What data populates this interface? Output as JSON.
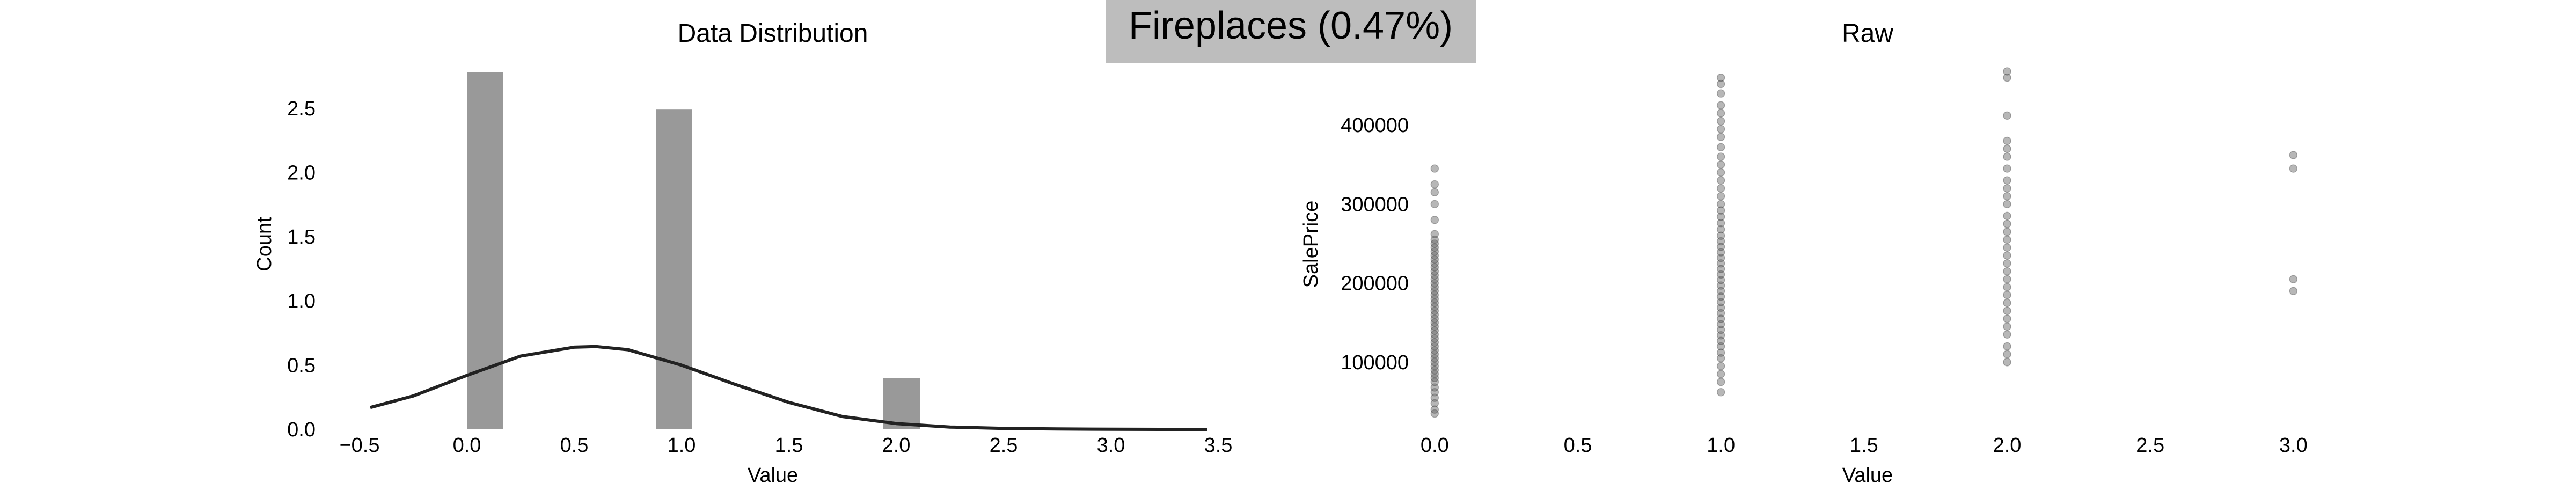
{
  "figure": {
    "title": "Fireplaces (0.47%)",
    "colors": {
      "bar": "#999999",
      "curve": "#222222",
      "point": "#5f5f5f",
      "title_box": "#bdbdbd"
    }
  },
  "chart_data": [
    {
      "type": "bar",
      "title": "Data Distribution",
      "xlabel": "Value",
      "ylabel": "Count",
      "xlim": [
        -0.6,
        3.45
      ],
      "ylim": [
        0,
        2.8
      ],
      "xticks": [
        "−0.5",
        "0.0",
        "0.5",
        "1.0",
        "1.5",
        "2.0",
        "2.5",
        "3.0",
        "3.5"
      ],
      "yticks": [
        "0.0",
        "0.5",
        "1.0",
        "1.5",
        "2.0",
        "2.5"
      ],
      "grid": false,
      "bars": [
        {
          "x0": 0.0,
          "x1": 0.17,
          "value": 2.78
        },
        {
          "x0": 0.88,
          "x1": 1.05,
          "value": 2.49
        },
        {
          "x0": 1.94,
          "x1": 2.11,
          "value": 0.4
        }
      ],
      "density_curve": {
        "x": [
          -0.45,
          -0.25,
          0.0,
          0.25,
          0.5,
          0.6,
          0.75,
          1.0,
          1.25,
          1.5,
          1.75,
          2.0,
          2.25,
          2.5,
          2.75,
          3.0,
          3.25,
          3.45
        ],
        "y": [
          0.17,
          0.26,
          0.42,
          0.57,
          0.64,
          0.645,
          0.62,
          0.5,
          0.35,
          0.21,
          0.1,
          0.045,
          0.018,
          0.007,
          0.003,
          0.001,
          0.0,
          0.0
        ]
      }
    },
    {
      "type": "scatter",
      "title": "Raw",
      "xlabel": "Value",
      "ylabel": "SalePrice",
      "xlim": [
        -0.1,
        3.05
      ],
      "ylim": [
        15000,
        470000
      ],
      "xticks": [
        "0.0",
        "0.5",
        "1.0",
        "1.5",
        "2.0",
        "2.5",
        "3.0"
      ],
      "yticks": [
        "100000",
        "200000",
        "300000",
        "400000"
      ],
      "grid": false,
      "points": [
        {
          "x": 0,
          "y": 35000
        },
        {
          "x": 0,
          "y": 40000
        },
        {
          "x": 0,
          "y": 48000
        },
        {
          "x": 0,
          "y": 55000
        },
        {
          "x": 0,
          "y": 62000
        },
        {
          "x": 0,
          "y": 68000
        },
        {
          "x": 0,
          "y": 75000
        },
        {
          "x": 0,
          "y": 80000
        },
        {
          "x": 0,
          "y": 85000
        },
        {
          "x": 0,
          "y": 90000
        },
        {
          "x": 0,
          "y": 95000
        },
        {
          "x": 0,
          "y": 100000
        },
        {
          "x": 0,
          "y": 105000
        },
        {
          "x": 0,
          "y": 110000
        },
        {
          "x": 0,
          "y": 115000
        },
        {
          "x": 0,
          "y": 120000
        },
        {
          "x": 0,
          "y": 125000
        },
        {
          "x": 0,
          "y": 130000
        },
        {
          "x": 0,
          "y": 135000
        },
        {
          "x": 0,
          "y": 140000
        },
        {
          "x": 0,
          "y": 145000
        },
        {
          "x": 0,
          "y": 150000
        },
        {
          "x": 0,
          "y": 155000
        },
        {
          "x": 0,
          "y": 160000
        },
        {
          "x": 0,
          "y": 165000
        },
        {
          "x": 0,
          "y": 170000
        },
        {
          "x": 0,
          "y": 175000
        },
        {
          "x": 0,
          "y": 180000
        },
        {
          "x": 0,
          "y": 185000
        },
        {
          "x": 0,
          "y": 190000
        },
        {
          "x": 0,
          "y": 195000
        },
        {
          "x": 0,
          "y": 200000
        },
        {
          "x": 0,
          "y": 205000
        },
        {
          "x": 0,
          "y": 210000
        },
        {
          "x": 0,
          "y": 215000
        },
        {
          "x": 0,
          "y": 220000
        },
        {
          "x": 0,
          "y": 225000
        },
        {
          "x": 0,
          "y": 230000
        },
        {
          "x": 0,
          "y": 235000
        },
        {
          "x": 0,
          "y": 240000
        },
        {
          "x": 0,
          "y": 245000
        },
        {
          "x": 0,
          "y": 250000
        },
        {
          "x": 0,
          "y": 255000
        },
        {
          "x": 0,
          "y": 262000
        },
        {
          "x": 0,
          "y": 280000
        },
        {
          "x": 0,
          "y": 300000
        },
        {
          "x": 0,
          "y": 315000
        },
        {
          "x": 0,
          "y": 325000
        },
        {
          "x": 0,
          "y": 345000
        },
        {
          "x": 1,
          "y": 62000
        },
        {
          "x": 1,
          "y": 75000
        },
        {
          "x": 1,
          "y": 85000
        },
        {
          "x": 1,
          "y": 95000
        },
        {
          "x": 1,
          "y": 105000
        },
        {
          "x": 1,
          "y": 112000
        },
        {
          "x": 1,
          "y": 120000
        },
        {
          "x": 1,
          "y": 127000
        },
        {
          "x": 1,
          "y": 134000
        },
        {
          "x": 1,
          "y": 141000
        },
        {
          "x": 1,
          "y": 148000
        },
        {
          "x": 1,
          "y": 155000
        },
        {
          "x": 1,
          "y": 162000
        },
        {
          "x": 1,
          "y": 169000
        },
        {
          "x": 1,
          "y": 176000
        },
        {
          "x": 1,
          "y": 183000
        },
        {
          "x": 1,
          "y": 190000
        },
        {
          "x": 1,
          "y": 197000
        },
        {
          "x": 1,
          "y": 204000
        },
        {
          "x": 1,
          "y": 211000
        },
        {
          "x": 1,
          "y": 218000
        },
        {
          "x": 1,
          "y": 225000
        },
        {
          "x": 1,
          "y": 232000
        },
        {
          "x": 1,
          "y": 239000
        },
        {
          "x": 1,
          "y": 246000
        },
        {
          "x": 1,
          "y": 253000
        },
        {
          "x": 1,
          "y": 260000
        },
        {
          "x": 1,
          "y": 268000
        },
        {
          "x": 1,
          "y": 276000
        },
        {
          "x": 1,
          "y": 284000
        },
        {
          "x": 1,
          "y": 292000
        },
        {
          "x": 1,
          "y": 300000
        },
        {
          "x": 1,
          "y": 310000
        },
        {
          "x": 1,
          "y": 320000
        },
        {
          "x": 1,
          "y": 330000
        },
        {
          "x": 1,
          "y": 340000
        },
        {
          "x": 1,
          "y": 350000
        },
        {
          "x": 1,
          "y": 360000
        },
        {
          "x": 1,
          "y": 372000
        },
        {
          "x": 1,
          "y": 385000
        },
        {
          "x": 1,
          "y": 395000
        },
        {
          "x": 1,
          "y": 405000
        },
        {
          "x": 1,
          "y": 415000
        },
        {
          "x": 1,
          "y": 425000
        },
        {
          "x": 1,
          "y": 440000
        },
        {
          "x": 1,
          "y": 452000
        },
        {
          "x": 1,
          "y": 460000
        },
        {
          "x": 2,
          "y": 100000
        },
        {
          "x": 2,
          "y": 110000
        },
        {
          "x": 2,
          "y": 120000
        },
        {
          "x": 2,
          "y": 135000
        },
        {
          "x": 2,
          "y": 145000
        },
        {
          "x": 2,
          "y": 155000
        },
        {
          "x": 2,
          "y": 165000
        },
        {
          "x": 2,
          "y": 175000
        },
        {
          "x": 2,
          "y": 185000
        },
        {
          "x": 2,
          "y": 195000
        },
        {
          "x": 2,
          "y": 205000
        },
        {
          "x": 2,
          "y": 215000
        },
        {
          "x": 2,
          "y": 225000
        },
        {
          "x": 2,
          "y": 235000
        },
        {
          "x": 2,
          "y": 245000
        },
        {
          "x": 2,
          "y": 255000
        },
        {
          "x": 2,
          "y": 265000
        },
        {
          "x": 2,
          "y": 275000
        },
        {
          "x": 2,
          "y": 285000
        },
        {
          "x": 2,
          "y": 300000
        },
        {
          "x": 2,
          "y": 310000
        },
        {
          "x": 2,
          "y": 320000
        },
        {
          "x": 2,
          "y": 330000
        },
        {
          "x": 2,
          "y": 345000
        },
        {
          "x": 2,
          "y": 360000
        },
        {
          "x": 2,
          "y": 370000
        },
        {
          "x": 2,
          "y": 380000
        },
        {
          "x": 2,
          "y": 412000
        },
        {
          "x": 2,
          "y": 460000
        },
        {
          "x": 2,
          "y": 468000
        },
        {
          "x": 3,
          "y": 190000
        },
        {
          "x": 3,
          "y": 205000
        },
        {
          "x": 3,
          "y": 345000
        },
        {
          "x": 3,
          "y": 362000
        }
      ]
    }
  ]
}
